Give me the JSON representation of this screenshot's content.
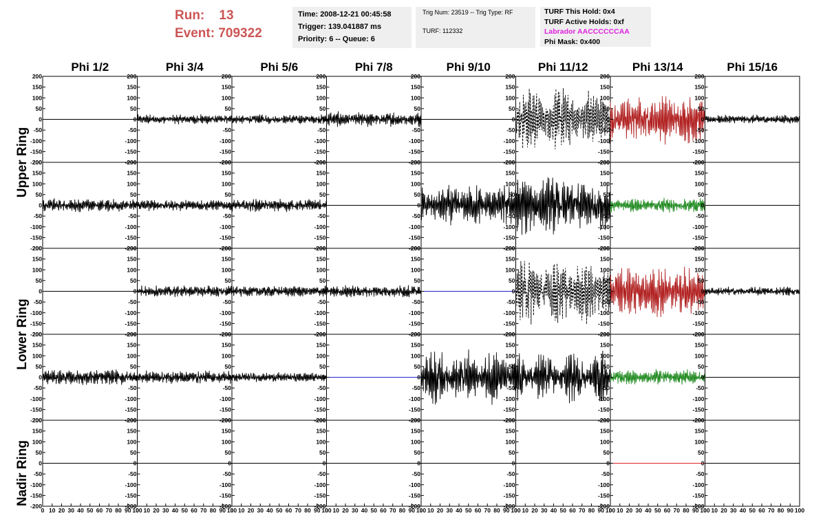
{
  "header": {
    "run_label": "Run:",
    "run_value": "13",
    "event_label": "Event:",
    "event_value": "709322",
    "time_line": "Time: 2008-12-21 00:45:58",
    "trigger_line": "Trigger: 139.041887 ms",
    "priority_line": "Priority: 6 -- Queue: 6",
    "trig_line": "Trig Num: 23519 -- Trig Type: RF",
    "turf_line": "TURF: 112332",
    "turf_hold": "TURF This Hold: 0x4",
    "turf_active": "TURF Active Holds: 0xf",
    "labrador": "Labrador AACCCCCCAA",
    "phi_mask": "Phi Mask: 0x400",
    "colors": {
      "run": "#cc5555",
      "labrador": "#e020e0",
      "box_bg": "#efefef"
    }
  },
  "ring_labels": {
    "upper": "Upper Ring",
    "lower": "Lower Ring",
    "nadir": "Nadir Ring"
  },
  "chart_data": {
    "type": "line",
    "columns": [
      "Phi 1/2",
      "Phi 3/4",
      "Phi 5/6",
      "Phi 7/8",
      "Phi 9/10",
      "Phi 11/12",
      "Phi 13/14",
      "Phi 15/16"
    ],
    "rows": 5,
    "ylim": [
      -200,
      200
    ],
    "xlim": [
      0,
      100
    ],
    "y_ticks": [
      -200,
      -150,
      -100,
      -50,
      0,
      50,
      100,
      150,
      200
    ],
    "x_ticks": [
      0,
      10,
      20,
      30,
      40,
      50,
      60,
      70,
      80,
      90,
      100
    ],
    "colors": {
      "black": "#000000",
      "red": "#b22222",
      "green": "#228b22",
      "blue": "#2222cc",
      "flatred": "#dd2222"
    },
    "panels": [
      [
        {
          "amp": 0,
          "color": "black",
          "style": "flat",
          "mod": 0
        },
        {
          "amp": 22,
          "color": "black",
          "style": "solid",
          "mod": 0.2
        },
        {
          "amp": 22,
          "color": "black",
          "style": "solid",
          "mod": 0.2
        },
        {
          "amp": 35,
          "color": "black",
          "style": "solid",
          "mod": 0.4
        },
        {
          "amp": 0,
          "color": "black",
          "style": "flat",
          "mod": 0
        },
        {
          "amp": 150,
          "color": "black",
          "style": "dashed",
          "mod": 0.5
        },
        {
          "amp": 110,
          "color": "red",
          "style": "solid",
          "mod": 0.4
        },
        {
          "amp": 20,
          "color": "black",
          "style": "solid",
          "mod": 0.2
        }
      ],
      [
        {
          "amp": 30,
          "color": "black",
          "style": "solid",
          "mod": 0.2
        },
        {
          "amp": 25,
          "color": "black",
          "style": "solid",
          "mod": 0.2
        },
        {
          "amp": 30,
          "color": "black",
          "style": "solid",
          "mod": 0.3
        },
        {
          "amp": 0,
          "color": "black",
          "style": "flat",
          "mod": 0
        },
        {
          "amp": 90,
          "color": "black",
          "style": "solid",
          "mod": 0.3
        },
        {
          "amp": 130,
          "color": "black",
          "style": "solid",
          "mod": 0.3
        },
        {
          "amp": 35,
          "color": "green",
          "style": "solid",
          "mod": 0.4
        },
        {
          "amp": 0,
          "color": "black",
          "style": "flat",
          "mod": 0
        }
      ],
      [
        {
          "amp": 0,
          "color": "black",
          "style": "flat",
          "mod": 0
        },
        {
          "amp": 28,
          "color": "black",
          "style": "solid",
          "mod": 0.2
        },
        {
          "amp": 25,
          "color": "black",
          "style": "solid",
          "mod": 0.2
        },
        {
          "amp": 28,
          "color": "black",
          "style": "solid",
          "mod": 0.2
        },
        {
          "amp": 0,
          "color": "blue",
          "style": "flat",
          "mod": 0
        },
        {
          "amp": 150,
          "color": "black",
          "style": "dashed",
          "mod": 0.5
        },
        {
          "amp": 120,
          "color": "red",
          "style": "solid",
          "mod": 0.4
        },
        {
          "amp": 20,
          "color": "black",
          "style": "solid",
          "mod": 0.2
        }
      ],
      [
        {
          "amp": 35,
          "color": "black",
          "style": "solid",
          "mod": 0.2
        },
        {
          "amp": 30,
          "color": "black",
          "style": "solid",
          "mod": 0.2
        },
        {
          "amp": 22,
          "color": "black",
          "style": "solid",
          "mod": 0.2
        },
        {
          "amp": 0,
          "color": "blue",
          "style": "flat",
          "mod": 0
        },
        {
          "amp": 130,
          "color": "black",
          "style": "solid",
          "mod": 0.7
        },
        {
          "amp": 120,
          "color": "black",
          "style": "solid",
          "mod": 0.7
        },
        {
          "amp": 35,
          "color": "green",
          "style": "solid",
          "mod": 0.4
        },
        {
          "amp": 0,
          "color": "black",
          "style": "flat",
          "mod": 0
        }
      ],
      [
        {
          "amp": 0,
          "color": "black",
          "style": "flat",
          "mod": 0
        },
        {
          "amp": 0,
          "color": "black",
          "style": "flat",
          "mod": 0
        },
        {
          "amp": 0,
          "color": "black",
          "style": "flat",
          "mod": 0
        },
        {
          "amp": 0,
          "color": "black",
          "style": "flat",
          "mod": 0
        },
        {
          "amp": 0,
          "color": "black",
          "style": "flat",
          "mod": 0
        },
        {
          "amp": 0,
          "color": "black",
          "style": "flat",
          "mod": 0
        },
        {
          "amp": 0,
          "color": "flatred",
          "style": "flat",
          "mod": 0
        },
        {
          "amp": 0,
          "color": "black",
          "style": "flat",
          "mod": 0
        }
      ]
    ]
  }
}
